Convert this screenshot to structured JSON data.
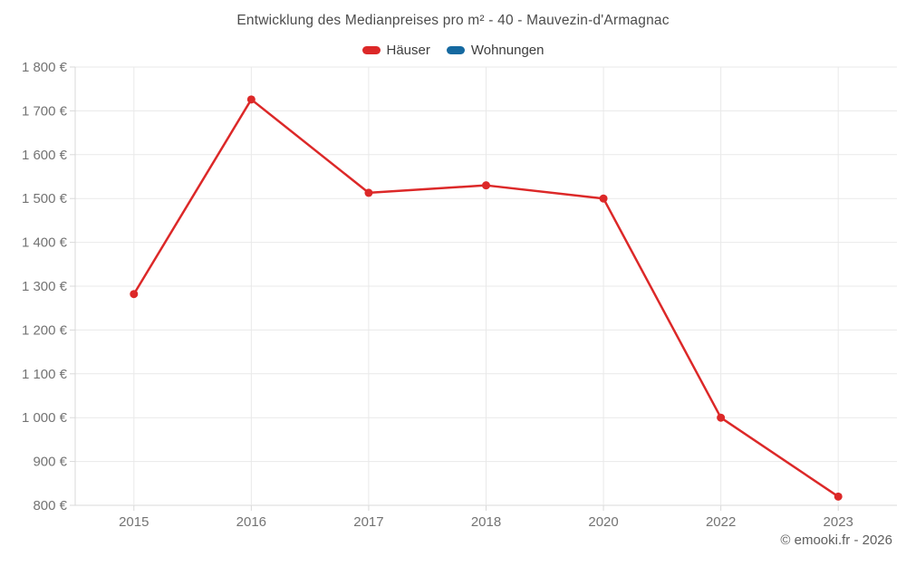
{
  "header": {
    "copyright": "© emooki.fr - 2026"
  },
  "legend": {
    "items": [
      {
        "label": "Häuser",
        "color": "#dc2828"
      },
      {
        "label": "Wohnungen",
        "color": "#1569a0"
      }
    ]
  },
  "chart_data": {
    "type": "line",
    "title": "Entwicklung des Medianpreises pro m² - 40 - Mauvezin-d'Armagnac",
    "categories": [
      "2015",
      "2016",
      "2017",
      "2018",
      "2020",
      "2022",
      "2023"
    ],
    "series": [
      {
        "name": "Häuser",
        "color": "#dc2828",
        "values": [
          1282,
          1726,
          1513,
          1530,
          1500,
          1000,
          820
        ]
      },
      {
        "name": "Wohnungen",
        "color": "#1569a0",
        "values": []
      }
    ],
    "xlabel": "",
    "ylabel": "",
    "ylim": [
      800,
      1800
    ],
    "y_step": 100,
    "y_tick_labels": [
      "1 800 €",
      "1 700 €",
      "1 600 €",
      "1 500 €",
      "1 400 €",
      "1 300 €",
      "1 200 €",
      "1 100 €",
      "1 000 €",
      "900 €",
      "800 €"
    ],
    "grid": true,
    "legend_position": "top",
    "colors": {
      "gridline": "#e9e9e9",
      "axis": "#d9d9d9",
      "tick_label": "#737373"
    }
  }
}
